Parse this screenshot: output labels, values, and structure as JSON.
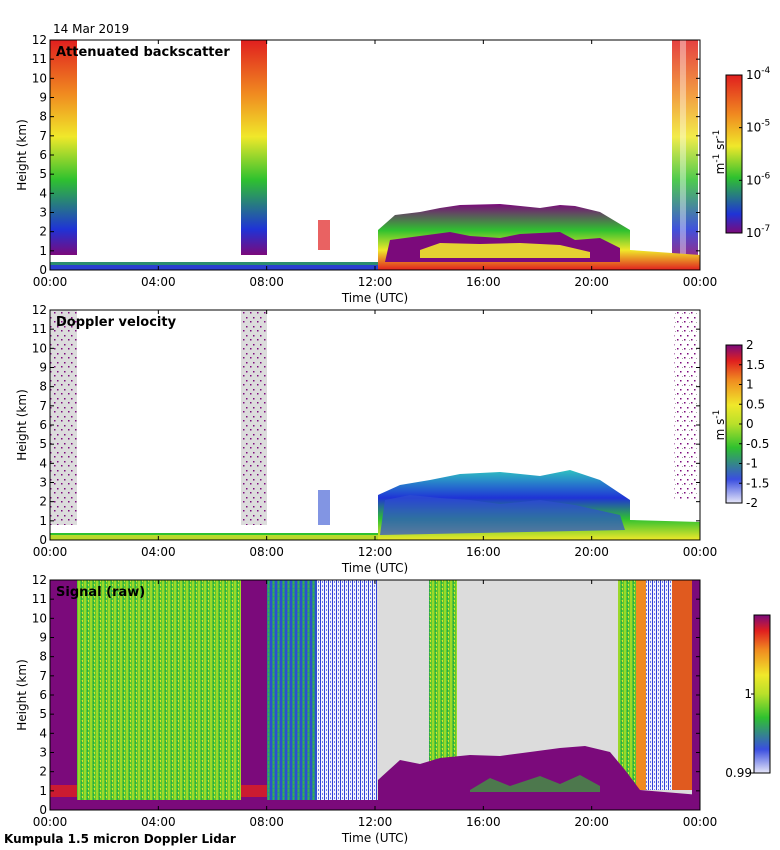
{
  "date_label": "14 Mar 2019",
  "footer": "Kumpula 1.5 micron Doppler Lidar",
  "colors": {
    "purple": "#7b0a7b",
    "blue": "#1f33d6",
    "green": "#2fc12f",
    "yellow": "#f0e82a",
    "orange": "#f08a20",
    "red": "#e01f1f",
    "grey": "#dcdcdc"
  },
  "chart_data": [
    {
      "type": "heatmap",
      "title": "Attenuated backscatter",
      "xlabel": "Time (UTC)",
      "ylabel": "Height (km)",
      "xlim": [
        0,
        24
      ],
      "ylim": [
        0,
        12
      ],
      "x_ticks": [
        "00:00",
        "04:00",
        "08:00",
        "12:00",
        "16:00",
        "20:00",
        "00:00"
      ],
      "y_ticks": [
        "0",
        "1",
        "2",
        "3",
        "4",
        "5",
        "6",
        "7",
        "8",
        "9",
        "10",
        "11",
        "12"
      ],
      "colorbar": {
        "label": "m-1 sr-1",
        "label_main": "m",
        "label_sup1": "-1",
        "label_mid": " sr",
        "label_sup2": "-1",
        "scale": "log",
        "range": [
          1e-07,
          0.0001
        ],
        "ticks": [
          {
            "base": "10",
            "exp": "-4",
            "value": 0.0001
          },
          {
            "base": "10",
            "exp": "-5",
            "value": 1e-05
          },
          {
            "base": "10",
            "exp": "-6",
            "value": 1e-06
          },
          {
            "base": "10",
            "exp": "-7",
            "value": 1e-07
          }
        ]
      }
    },
    {
      "type": "heatmap",
      "title": "Doppler velocity",
      "xlabel": "Time (UTC)",
      "ylabel": "Height (km)",
      "xlim": [
        0,
        24
      ],
      "ylim": [
        0,
        12
      ],
      "x_ticks": [
        "00:00",
        "04:00",
        "08:00",
        "12:00",
        "16:00",
        "20:00",
        "00:00"
      ],
      "y_ticks": [
        "0",
        "1",
        "2",
        "3",
        "4",
        "5",
        "6",
        "7",
        "8",
        "9",
        "10",
        "11",
        "12"
      ],
      "colorbar": {
        "label_main": "m s",
        "label_sup1": "-1",
        "scale": "linear",
        "range": [
          -2,
          2
        ],
        "ticks": [
          "2",
          "1.5",
          "1",
          "0.5",
          "0",
          "-0.5",
          "-1",
          "-1.5",
          "-2"
        ]
      }
    },
    {
      "type": "heatmap",
      "title": "Signal (raw)",
      "xlabel": "Time (UTC)",
      "ylabel": "Height (km)",
      "xlim": [
        0,
        24
      ],
      "ylim": [
        0,
        12
      ],
      "x_ticks": [
        "00:00",
        "04:00",
        "08:00",
        "12:00",
        "16:00",
        "20:00",
        "00:00"
      ],
      "y_ticks": [
        "0",
        "1",
        "2",
        "3",
        "4",
        "5",
        "6",
        "7",
        "8",
        "9",
        "10",
        "11",
        "12"
      ],
      "colorbar": {
        "scale": "linear",
        "range": [
          0.99,
          1.01
        ],
        "ticks": [
          "1",
          "0.99"
        ]
      }
    }
  ]
}
